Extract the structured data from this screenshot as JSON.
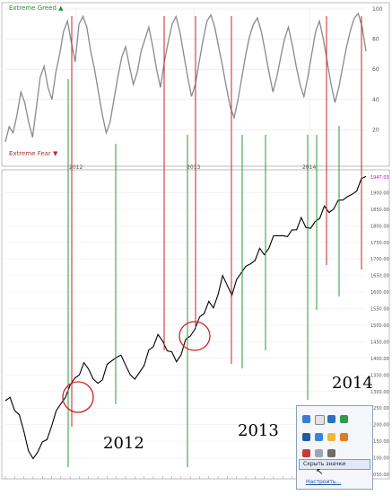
{
  "top_panel": {
    "label_greed": "Extreme Greed",
    "label_fear": "Extreme Fear",
    "year_labels": [
      "2012",
      "2013",
      "2014"
    ],
    "y_ticks": [
      "100",
      "80",
      "60",
      "40",
      "20"
    ],
    "line_color": "#8a8a8a",
    "greed_color": "#2e8b3e",
    "fear_color": "#b03030"
  },
  "bottom_panel": {
    "year_annotations": [
      "2012",
      "2013",
      "2014"
    ],
    "y_ticks": [
      "1900.00",
      "1850.00",
      "1800.00",
      "1750.00",
      "1700.00",
      "1650.00",
      "1600.00",
      "1550.00",
      "1500.00",
      "1450.00",
      "1400.00",
      "1350.00",
      "1300.00",
      "1250.00",
      "1200.00",
      "1150.00",
      "1100.00",
      "1050.00"
    ],
    "last_price_label": "1947.03",
    "price_color": "#000000"
  },
  "marker_colors": {
    "red": "#cc2222",
    "green": "#2b9a3a",
    "circle": "#d02020"
  },
  "tray_popup": {
    "item_label": "Скрыть значки",
    "link_label": "Настроить..."
  },
  "chart_data": [
    {
      "type": "line",
      "title": "",
      "xlabel": "",
      "ylabel": "",
      "ylim": [
        0,
        100
      ],
      "x_tick_labels": [
        "2012",
        "2013",
        "2014"
      ],
      "series": [
        {
          "values": [
            12,
            22,
            18,
            30,
            45,
            38,
            25,
            15,
            35,
            55,
            62,
            48,
            40,
            58,
            70,
            85,
            92,
            78,
            65,
            90,
            95,
            88,
            72,
            60,
            45,
            30,
            18,
            25,
            40,
            55,
            68,
            75,
            62,
            50,
            58,
            72,
            80,
            88,
            75,
            60,
            48,
            65,
            78,
            90,
            95,
            85,
            70,
            55,
            42,
            50,
            65,
            80,
            92,
            96,
            88,
            75,
            62,
            48,
            35,
            28,
            40,
            55,
            70,
            82,
            90,
            94,
            85,
            72,
            58,
            45,
            55,
            68,
            80,
            88,
            76,
            62,
            50,
            42,
            55,
            70,
            85,
            92,
            80,
            65,
            50,
            38,
            48,
            62,
            75,
            86,
            94,
            97,
            88,
            72
          ]
        }
      ]
    },
    {
      "type": "line",
      "title": "",
      "xlabel": "",
      "ylabel": "",
      "ylim": [
        1050,
        1950
      ],
      "series": [
        {
          "values": [
            1260,
            1280,
            1250,
            1220,
            1180,
            1130,
            1090,
            1120,
            1160,
            1150,
            1200,
            1230,
            1260,
            1290,
            1310,
            1340,
            1360,
            1380,
            1370,
            1350,
            1320,
            1340,
            1370,
            1390,
            1410,
            1400,
            1380,
            1360,
            1330,
            1360,
            1390,
            1420,
            1440,
            1460,
            1450,
            1430,
            1410,
            1390,
            1420,
            1450,
            1470,
            1500,
            1520,
            1540,
            1560,
            1550,
            1600,
            1640,
            1620,
            1600,
            1630,
            1660,
            1690,
            1680,
            1700,
            1720,
            1710,
            1740,
            1760,
            1770,
            1780,
            1760,
            1790,
            1800,
            1820,
            1800,
            1780,
            1810,
            1830,
            1850,
            1840,
            1860,
            1870,
            1880,
            1900,
            1890,
            1910,
            1930,
            1947
          ]
        }
      ]
    }
  ]
}
